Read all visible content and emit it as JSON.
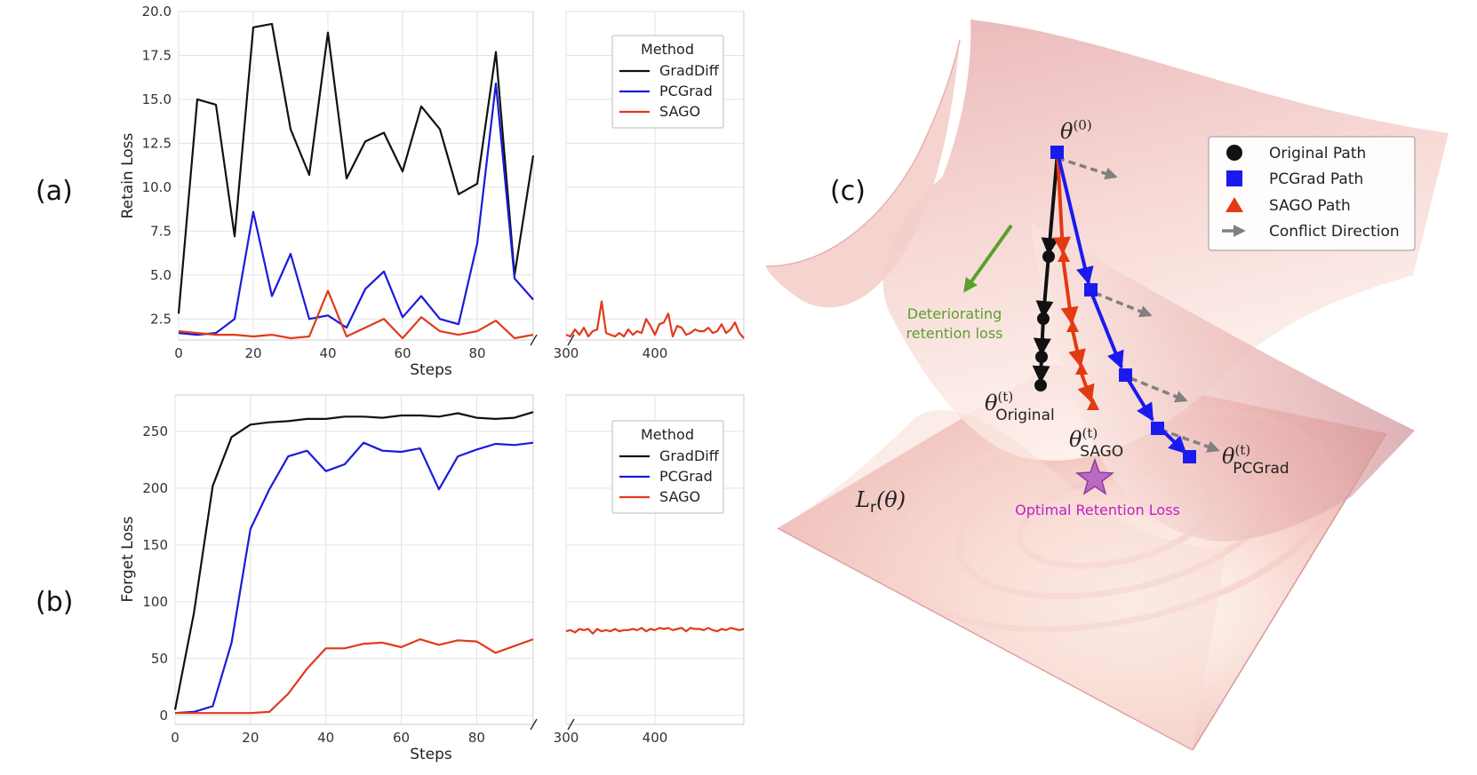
{
  "panels": {
    "a": "(a)",
    "b": "(b)",
    "c": "(c)"
  },
  "colors": {
    "GradDiff": "#111111",
    "PCGrad": "#1a1adc",
    "SAGO": "#e03a1a"
  },
  "chart_data": [
    {
      "id": "a",
      "type": "line",
      "xlabel": "Steps",
      "ylabel": "Retain Loss",
      "x_left": [
        0,
        5,
        10,
        15,
        20,
        25,
        30,
        35,
        40,
        45,
        50,
        55,
        60,
        65,
        70,
        75,
        80,
        85,
        90,
        95
      ],
      "xlim_left": [
        0,
        95
      ],
      "xlim_right": [
        300,
        500
      ],
      "ylim": [
        1.3,
        20.0
      ],
      "yticks": [
        "2.5",
        "5.0",
        "7.5",
        "10.0",
        "12.5",
        "15.0",
        "17.5",
        "20.0"
      ],
      "xticks_left": [
        "0",
        "20",
        "40",
        "60",
        "80"
      ],
      "xticks_right": [
        "300",
        "400"
      ],
      "legend_title": "Method",
      "legend_position": "top-right",
      "series": [
        {
          "name": "GradDiff",
          "values": [
            2.8,
            15.0,
            14.7,
            7.2,
            19.1,
            19.3,
            13.3,
            10.7,
            18.8,
            10.5,
            12.6,
            13.1,
            10.9,
            14.6,
            13.3,
            9.6,
            10.2,
            17.7,
            5.0,
            11.8
          ]
        },
        {
          "name": "PCGrad",
          "values": [
            1.7,
            1.6,
            1.7,
            2.5,
            8.6,
            3.8,
            6.2,
            2.5,
            2.7,
            2.0,
            4.2,
            5.2,
            2.6,
            3.8,
            2.5,
            2.2,
            6.8,
            15.9,
            4.8,
            3.6
          ]
        },
        {
          "name": "SAGO",
          "values": [
            1.8,
            1.7,
            1.6,
            1.6,
            1.5,
            1.6,
            1.4,
            1.5,
            4.1,
            1.5,
            2.0,
            2.5,
            1.4,
            2.6,
            1.8,
            1.6,
            1.8,
            2.4,
            1.4,
            1.6
          ],
          "right_x": [
            300,
            305,
            310,
            315,
            320,
            325,
            330,
            335,
            340,
            345,
            350,
            355,
            360,
            365,
            370,
            375,
            380,
            385,
            390,
            395,
            400,
            405,
            410,
            415,
            420,
            425,
            430,
            435,
            440,
            445,
            450,
            455,
            460,
            465,
            470,
            475,
            480,
            485,
            490,
            495,
            500
          ],
          "right_values": [
            1.6,
            1.5,
            1.9,
            1.6,
            2.0,
            1.5,
            1.8,
            1.9,
            3.5,
            1.7,
            1.6,
            1.5,
            1.7,
            1.5,
            1.9,
            1.6,
            1.8,
            1.7,
            2.5,
            2.1,
            1.6,
            2.2,
            2.3,
            2.8,
            1.5,
            2.1,
            2.0,
            1.6,
            1.7,
            1.9,
            1.8,
            1.8,
            2.0,
            1.7,
            1.8,
            2.2,
            1.7,
            1.9,
            2.3,
            1.7,
            1.4
          ]
        }
      ]
    },
    {
      "id": "b",
      "type": "line",
      "xlabel": "Steps",
      "ylabel": "Forget Loss",
      "x_left": [
        0,
        5,
        10,
        15,
        20,
        25,
        30,
        35,
        40,
        45,
        50,
        55,
        60,
        65,
        70,
        75,
        80,
        85,
        90,
        95
      ],
      "xlim_left": [
        0,
        95
      ],
      "xlim_right": [
        300,
        500
      ],
      "ylim": [
        -8,
        282
      ],
      "yticks": [
        "0",
        "50",
        "100",
        "150",
        "200",
        "250"
      ],
      "xticks_left": [
        "0",
        "20",
        "40",
        "60",
        "80"
      ],
      "xticks_right": [
        "300",
        "400"
      ],
      "legend_title": "Method",
      "legend_position": "top-right",
      "series": [
        {
          "name": "GradDiff",
          "values": [
            5,
            90,
            202,
            245,
            256,
            258,
            259,
            261,
            261,
            263,
            263,
            262,
            264,
            264,
            263,
            266,
            262,
            261,
            262,
            267
          ]
        },
        {
          "name": "PCGrad",
          "values": [
            2,
            3,
            8,
            64,
            164,
            199,
            228,
            233,
            215,
            221,
            240,
            233,
            232,
            235,
            199,
            228,
            234,
            239,
            238,
            240
          ]
        },
        {
          "name": "SAGO",
          "values": [
            2,
            2,
            2,
            2,
            2,
            3,
            19,
            41,
            59,
            59,
            63,
            64,
            60,
            67,
            62,
            66,
            65,
            55,
            61,
            67
          ],
          "right_x": [
            300,
            305,
            310,
            315,
            320,
            325,
            330,
            335,
            340,
            345,
            350,
            355,
            360,
            365,
            370,
            375,
            380,
            385,
            390,
            395,
            400,
            405,
            410,
            415,
            420,
            425,
            430,
            435,
            440,
            445,
            450,
            455,
            460,
            465,
            470,
            475,
            480,
            485,
            490,
            495,
            500
          ],
          "right_values": [
            74,
            75,
            73,
            76,
            75,
            76,
            72,
            76,
            74,
            75,
            74,
            76,
            74,
            75,
            75,
            76,
            75,
            77,
            74,
            76,
            75,
            77,
            76,
            77,
            75,
            76,
            77,
            74,
            77,
            76,
            76,
            75,
            77,
            75,
            74,
            76,
            75,
            77,
            76,
            75,
            76
          ]
        }
      ]
    }
  ],
  "diagram": {
    "surface_label": "L",
    "surface_sub": "r",
    "surface_arg": "(θ)",
    "theta0": "θ",
    "theta0_sup": "(0)",
    "theta_orig": "θ",
    "theta_orig_sup": "(t)",
    "theta_orig_sub": "Original",
    "theta_sago": "θ",
    "theta_sago_sup": "(t)",
    "theta_sago_sub": "SAGO",
    "theta_pcgrad": "θ",
    "theta_pcgrad_sup": "(t)",
    "theta_pcgrad_sub": "PCGrad",
    "deteriorating_1": "Deteriorating",
    "deteriorating_2": "retention loss",
    "optimal": "Optimal Retention Loss",
    "legend": [
      "Original Path",
      "PCGrad Path",
      "SAGO Path",
      "Conflict Direction"
    ],
    "colors": {
      "original": "#111111",
      "pcgrad": "#1a1aee",
      "sago": "#e23a12",
      "conflict": "#808080",
      "green": "#5aa02c",
      "magenta": "#c020c8"
    }
  }
}
